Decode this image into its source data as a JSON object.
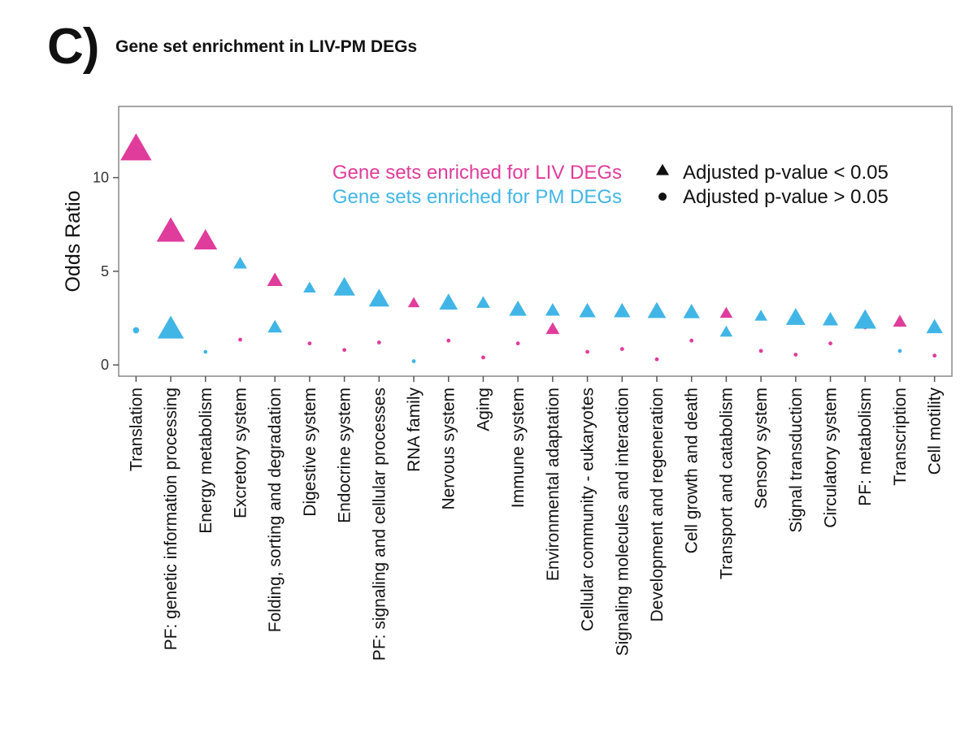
{
  "figure": {
    "panel_label": "C)",
    "title": "Gene set enrichment in LIV-PM DEGs"
  },
  "chart_data": {
    "type": "scatter",
    "title": "Gene set enrichment in LIV-PM DEGs",
    "xlabel": "",
    "ylabel": "Odds Ratio",
    "ylim": [
      -0.6,
      13.8
    ],
    "yticks": [
      0,
      5,
      10
    ],
    "grid": false,
    "legend_position": "top-right",
    "categories": [
      "Translation",
      "PF: genetic information processing",
      "Energy metabolism",
      "Excretory system",
      "Folding, sorting and degradation",
      "Digestive system",
      "Endocrine system",
      "PF: signaling and cellular processes",
      "RNA family",
      "Nervous system",
      "Aging",
      "Immune system",
      "Environmental adaptation",
      "Cellular community - eukaryotes",
      "Signaling molecules and interaction",
      "Development and regeneration",
      "Cell growth and death",
      "Transport and catabolism",
      "Sensory system",
      "Signal transduction",
      "Circulatory system",
      "PF: metabolism",
      "Transcription",
      "Cell motility"
    ],
    "series": [
      {
        "name": "Gene sets enriched for LIV DEGs",
        "color": "#e03c9c",
        "values": [
          11.5,
          7.1,
          6.6,
          1.35,
          4.5,
          1.15,
          0.8,
          1.2,
          3.3,
          1.3,
          0.4,
          1.15,
          1.9,
          0.7,
          0.85,
          0.3,
          1.3,
          2.75,
          0.75,
          0.55,
          1.15,
          2.0,
          2.3,
          0.5
        ],
        "significant": [
          true,
          true,
          true,
          false,
          true,
          false,
          false,
          false,
          true,
          false,
          false,
          false,
          true,
          false,
          false,
          false,
          false,
          true,
          false,
          false,
          false,
          false,
          true,
          false
        ],
        "size": [
          3.2,
          2.9,
          2.4,
          1.0,
          1.6,
          1.0,
          1.0,
          1.0,
          1.2,
          1.0,
          1.0,
          1.0,
          1.4,
          1.0,
          1.0,
          1.0,
          1.0,
          1.3,
          1.0,
          1.0,
          1.0,
          1.0,
          1.4,
          1.0
        ]
      },
      {
        "name": "Gene sets enriched for PM DEGs",
        "color": "#41b6e6",
        "values": [
          1.85,
          1.9,
          0.7,
          5.4,
          2.0,
          4.1,
          4.1,
          3.5,
          0.2,
          3.3,
          3.3,
          2.95,
          2.9,
          2.85,
          2.85,
          2.85,
          2.8,
          1.75,
          2.6,
          2.5,
          2.4,
          2.35,
          0.75,
          2.0
        ],
        "significant": [
          false,
          true,
          false,
          true,
          true,
          true,
          true,
          true,
          false,
          true,
          true,
          true,
          true,
          true,
          true,
          true,
          true,
          true,
          true,
          true,
          true,
          true,
          false,
          true
        ],
        "size": [
          1.6,
          2.7,
          1.0,
          1.4,
          1.5,
          1.3,
          2.2,
          2.1,
          1.0,
          1.9,
          1.4,
          1.8,
          1.5,
          1.7,
          1.7,
          1.9,
          1.7,
          1.3,
          1.3,
          2.0,
          1.6,
          2.3,
          1.0,
          1.7
        ]
      }
    ],
    "shape_legend": [
      {
        "shape": "triangle",
        "label": "Adjusted p-value < 0.05"
      },
      {
        "shape": "circle",
        "label": "Adjusted p-value > 0.05"
      }
    ]
  }
}
